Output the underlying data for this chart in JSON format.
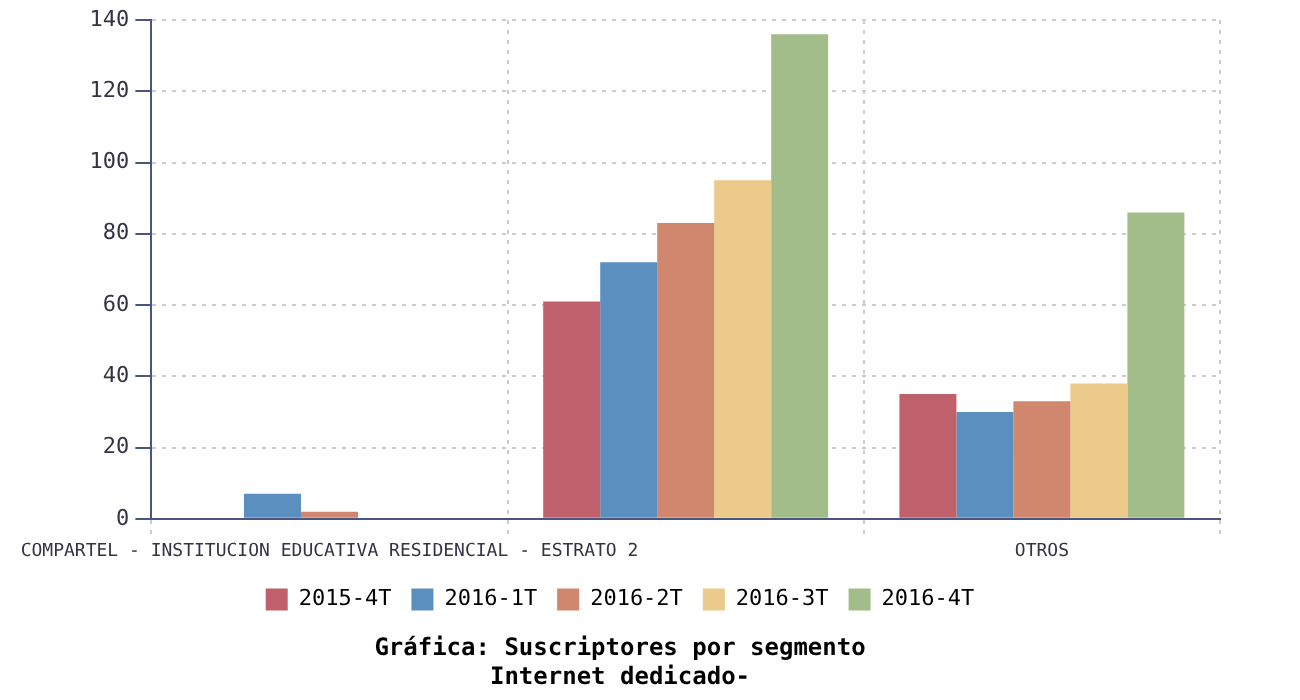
{
  "chart_data": {
    "type": "bar",
    "title": "Gráfica: Suscriptores por segmento",
    "subtitle": "Internet dedicado-",
    "categories": [
      "COMPARTEL - INSTITUCION EDUCATIVA RESIDENCIAL - ESTRATO 2",
      null,
      "OTROS"
    ],
    "series": [
      {
        "name": "2015-4T",
        "color": "#c0606a",
        "values": [
          null,
          61,
          35
        ]
      },
      {
        "name": "2016-1T",
        "color": "#5b8fc0",
        "values": [
          7,
          72,
          30
        ]
      },
      {
        "name": "2016-2T",
        "color": "#d0876e",
        "values": [
          2,
          83,
          33
        ]
      },
      {
        "name": "2016-3T",
        "color": "#ebca8a",
        "values": [
          null,
          95,
          38
        ]
      },
      {
        "name": "2016-4T",
        "color": "#a3bd8a",
        "values": [
          null,
          136,
          86
        ]
      }
    ],
    "ylim": [
      0,
      140
    ],
    "yticks": [
      0,
      20,
      40,
      60,
      80,
      100,
      120,
      140
    ],
    "grid": true,
    "legend": "bottom"
  }
}
